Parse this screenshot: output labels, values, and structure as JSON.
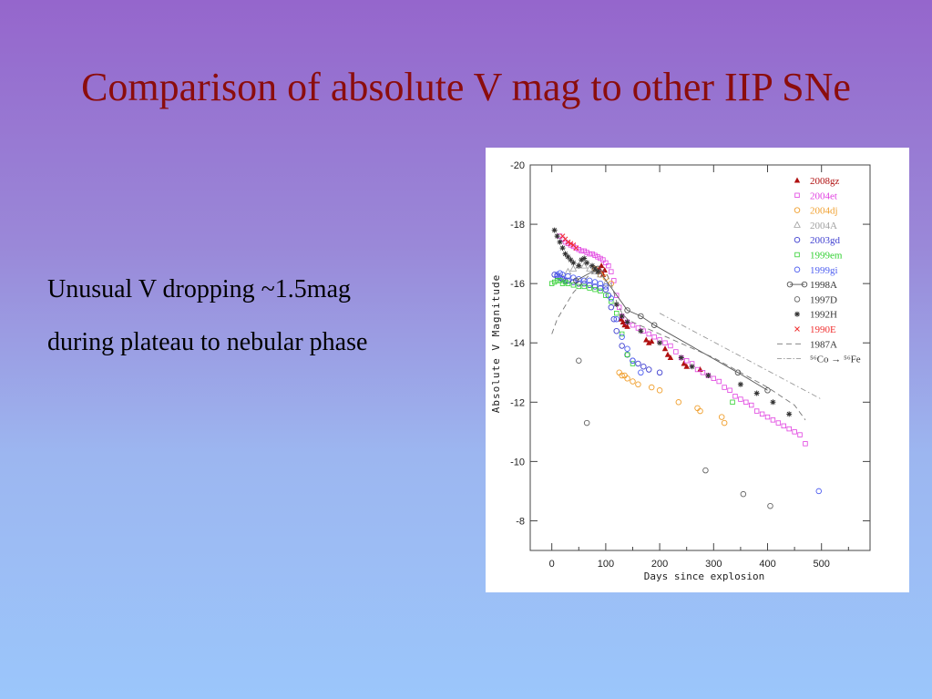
{
  "slide": {
    "title": "Comparison of absolute V mag to other IIP SNe",
    "bullets": [
      "Unusual V dropping ~1.5mag",
      "during plateau to nebular phase"
    ]
  },
  "chart_data": {
    "type": "scatter",
    "xlabel": "Days since explosion",
    "ylabel": "Absolute V Magnitude",
    "xlim": [
      -40,
      590
    ],
    "ylim": [
      -7,
      -20
    ],
    "xticks": [
      0,
      100,
      200,
      300,
      400,
      500
    ],
    "yticks": [
      -20,
      -18,
      -16,
      -14,
      -12,
      -10,
      -8
    ],
    "grid": false,
    "legend_position": "top-right",
    "series": [
      {
        "name": "2008gz",
        "color": "#b01010",
        "marker": "triangle-filled",
        "x": [
          88,
          90,
          92,
          95,
          98,
          128,
          132,
          135,
          140,
          175,
          180,
          185,
          210,
          215,
          220,
          245,
          250,
          275
        ],
        "y": [
          -16.5,
          -16.4,
          -16.6,
          -16.3,
          -16.45,
          -14.8,
          -14.7,
          -14.6,
          -14.55,
          -14.1,
          -14.0,
          -14.05,
          -13.8,
          -13.6,
          -13.5,
          -13.3,
          -13.2,
          -13.1
        ]
      },
      {
        "name": "2004et",
        "color": "#e040e0",
        "marker": "square-open",
        "x": [
          15,
          20,
          25,
          30,
          35,
          40,
          45,
          50,
          55,
          60,
          65,
          70,
          75,
          80,
          85,
          90,
          95,
          100,
          105,
          110,
          115,
          120,
          125,
          130,
          140,
          150,
          160,
          170,
          180,
          190,
          200,
          210,
          220,
          230,
          240,
          250,
          260,
          270,
          280,
          290,
          300,
          310,
          320,
          330,
          340,
          350,
          360,
          370,
          380,
          390,
          400,
          410,
          420,
          430,
          440,
          450,
          460,
          470
        ],
        "y": [
          -17.6,
          -17.5,
          -17.4,
          -17.35,
          -17.3,
          -17.25,
          -17.2,
          -17.15,
          -17.1,
          -17.1,
          -17.05,
          -17.0,
          -17.0,
          -16.95,
          -16.9,
          -16.85,
          -16.8,
          -16.7,
          -16.6,
          -16.4,
          -16.1,
          -15.6,
          -15.2,
          -14.9,
          -14.7,
          -14.6,
          -14.5,
          -14.4,
          -14.3,
          -14.2,
          -14.1,
          -14.0,
          -13.9,
          -13.7,
          -13.5,
          -13.4,
          -13.3,
          -13.1,
          -13.0,
          -12.9,
          -12.8,
          -12.7,
          -12.5,
          -12.4,
          -12.2,
          -12.1,
          -12.0,
          -11.9,
          -11.7,
          -11.6,
          -11.5,
          -11.4,
          -11.3,
          -11.2,
          -11.1,
          -11.0,
          -10.9,
          -10.6
        ]
      },
      {
        "name": "2004dj",
        "color": "#f0a030",
        "marker": "circle-open",
        "x": [
          80,
          90,
          100,
          110,
          125,
          130,
          135,
          140,
          150,
          160,
          185,
          200,
          235,
          270,
          275,
          315,
          320
        ],
        "y": [
          -16.5,
          -16.3,
          -16.2,
          -16.0,
          -13.0,
          -12.9,
          -12.9,
          -12.8,
          -12.7,
          -12.6,
          -12.5,
          -12.4,
          -12.0,
          -11.8,
          -11.7,
          -11.5,
          -11.3
        ]
      },
      {
        "name": "2004A",
        "color": "#a0a0a0",
        "marker": "triangle-open",
        "x": [
          20,
          30,
          40,
          50,
          60,
          70,
          80,
          90,
          100
        ],
        "y": [
          -16.2,
          -16.4,
          -16.5,
          -16.6,
          -16.6,
          -16.5,
          -16.4,
          -16.3,
          -16.0
        ]
      },
      {
        "name": "2003gd",
        "color": "#4040d0",
        "marker": "circle-open",
        "x": [
          5,
          10,
          15,
          20,
          25,
          30,
          40,
          50,
          60,
          70,
          80,
          90,
          100,
          105,
          110,
          115,
          120,
          130,
          140,
          150,
          160,
          170,
          180,
          200
        ],
        "y": [
          -16.3,
          -16.25,
          -16.2,
          -16.15,
          -16.1,
          -16.1,
          -16.05,
          -16.0,
          -16.0,
          -15.95,
          -15.9,
          -15.85,
          -15.8,
          -15.6,
          -15.2,
          -14.8,
          -14.4,
          -13.9,
          -13.6,
          -13.4,
          -13.3,
          -13.2,
          -13.1,
          -13.0
        ]
      },
      {
        "name": "1999em",
        "color": "#30d030",
        "marker": "square-open",
        "x": [
          0,
          5,
          10,
          15,
          20,
          25,
          30,
          40,
          50,
          60,
          70,
          80,
          90,
          100,
          110,
          120,
          130,
          140,
          150,
          335
        ],
        "y": [
          -16.0,
          -16.05,
          -16.1,
          -16.1,
          -16.0,
          -16.05,
          -16.0,
          -15.95,
          -15.9,
          -15.9,
          -15.85,
          -15.8,
          -15.75,
          -15.6,
          -15.4,
          -15.0,
          -14.3,
          -13.6,
          -13.3,
          -12.0
        ]
      },
      {
        "name": "1999gi",
        "color": "#5060f0",
        "marker": "circle-open",
        "x": [
          10,
          15,
          20,
          30,
          40,
          50,
          60,
          70,
          80,
          90,
          100,
          110,
          120,
          130,
          140,
          150,
          165,
          495
        ],
        "y": [
          -16.3,
          -16.35,
          -16.3,
          -16.25,
          -16.2,
          -16.15,
          -16.1,
          -16.1,
          -16.05,
          -16.0,
          -15.9,
          -15.5,
          -14.8,
          -14.2,
          -13.8,
          -13.4,
          -13.0,
          -9.0
        ]
      },
      {
        "name": "1998A",
        "color": "#555555",
        "marker": "circle-open-line",
        "x": [
          45,
          85,
          140,
          165,
          190,
          345,
          400
        ],
        "y": [
          -16.1,
          -16.5,
          -15.1,
          -14.9,
          -14.6,
          -13.0,
          -12.4
        ]
      },
      {
        "name": "1997D",
        "color": "#666666",
        "marker": "circle-open",
        "x": [
          50,
          65,
          285,
          355,
          405
        ],
        "y": [
          -13.4,
          -11.3,
          -9.7,
          -8.9,
          -8.5
        ]
      },
      {
        "name": "1992H",
        "color": "#333333",
        "marker": "star",
        "x": [
          5,
          10,
          15,
          20,
          25,
          30,
          35,
          40,
          50,
          55,
          60,
          65,
          75,
          80,
          85,
          120,
          130,
          140,
          165,
          200,
          240,
          260,
          290,
          350,
          380,
          410,
          440
        ],
        "y": [
          -17.8,
          -17.6,
          -17.4,
          -17.2,
          -17.0,
          -16.9,
          -16.8,
          -16.7,
          -16.6,
          -16.8,
          -16.85,
          -16.7,
          -16.6,
          -16.5,
          -16.4,
          -15.3,
          -14.9,
          -14.7,
          -14.4,
          -14.0,
          -13.5,
          -13.2,
          -12.9,
          -12.6,
          -12.3,
          -12.0,
          -11.6
        ]
      },
      {
        "name": "1990E",
        "color": "#f03030",
        "marker": "cross",
        "x": [
          20,
          25,
          30,
          35,
          40,
          45
        ],
        "y": [
          -17.6,
          -17.5,
          -17.4,
          -17.35,
          -17.3,
          -17.2
        ]
      },
      {
        "name": "1987A",
        "color": "#777777",
        "marker": "dashed-line",
        "x": [
          0,
          10,
          20,
          30,
          40,
          50,
          60,
          70,
          80,
          90,
          100,
          110,
          120,
          130,
          140,
          150,
          175,
          200,
          250,
          300,
          350,
          400,
          450,
          470
        ],
        "y": [
          -14.3,
          -14.8,
          -15.1,
          -15.4,
          -15.7,
          -15.9,
          -16.1,
          -16.3,
          -16.4,
          -16.45,
          -16.4,
          -16.0,
          -15.4,
          -15.0,
          -14.8,
          -14.7,
          -14.5,
          -14.3,
          -13.9,
          -13.5,
          -13.0,
          -12.5,
          -11.9,
          -11.4
        ]
      },
      {
        "name": "⁵⁶Co → ⁵⁶Fe",
        "color": "#999999",
        "marker": "dashdot-line",
        "x": [
          200,
          500
        ],
        "y": [
          -15.0,
          -12.1
        ]
      }
    ]
  }
}
